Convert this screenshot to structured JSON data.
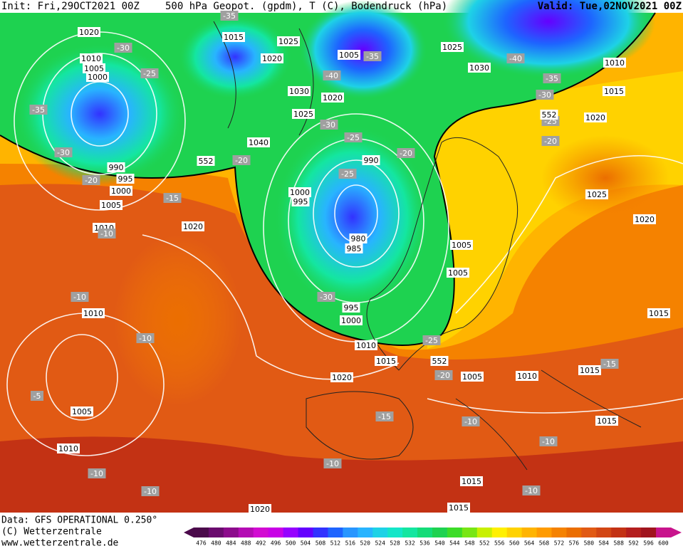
{
  "header": {
    "init": "Init: Fri,29OCT2021 00Z",
    "title": "500 hPa Geopot. (gpdm), T (C), Bodendruck (hPa)",
    "valid": "Valid: Tue,02NOV2021 00Z"
  },
  "footer": {
    "data": "Data: GFS OPERATIONAL 0.250°",
    "copyright": "(C) Wetterzentrale",
    "url": "www.wetterzentrale.de"
  },
  "colorbar": {
    "levels": [
      476,
      480,
      484,
      488,
      492,
      496,
      500,
      504,
      508,
      512,
      516,
      520,
      524,
      528,
      532,
      536,
      540,
      544,
      548,
      552,
      556,
      560,
      564,
      568,
      572,
      576,
      580,
      584,
      588,
      592,
      596,
      600
    ],
    "colors": [
      "#4b0a4b",
      "#6a0a6e",
      "#8c0a8c",
      "#b40ab4",
      "#d20ad2",
      "#c800e6",
      "#9600ff",
      "#6400ff",
      "#3232ff",
      "#1e64ff",
      "#2896ff",
      "#28b4ff",
      "#1ed2e6",
      "#14e6c8",
      "#14e6a0",
      "#14dc78",
      "#1ed250",
      "#3cdc28",
      "#78e614",
      "#c8f000",
      "#fff000",
      "#ffd200",
      "#ffb400",
      "#ff9b00",
      "#f58200",
      "#eb6e00",
      "#e15a14",
      "#d24614",
      "#c33214",
      "#b41e1e",
      "#a0141e",
      "#c8148c"
    ]
  },
  "map": {
    "pressure_labels": [
      1020,
      1015,
      1025,
      1020,
      1005,
      1025,
      1030,
      1010,
      1015,
      1020,
      1010,
      1005,
      1000,
      1030,
      1020,
      1025,
      1040,
      990,
      990,
      995,
      1000,
      1005,
      1010,
      1000,
      995,
      1025,
      1020,
      1020,
      1005,
      980,
      985,
      1005,
      1010,
      995,
      1000,
      1015,
      1010,
      1015,
      1005,
      1010,
      1015,
      1020,
      1005,
      1015,
      1010,
      1015,
      1020,
      1015
    ],
    "temperature_labels": [
      -35,
      -30,
      -25,
      -35,
      -30,
      -20,
      -15,
      -10,
      -35,
      -40,
      -30,
      -25,
      -20,
      -25,
      -20,
      -40,
      -35,
      -30,
      -25,
      -20,
      -10,
      -10,
      -5,
      -30,
      -25,
      -20,
      -15,
      -15,
      -10,
      -10,
      -10,
      -10,
      -10,
      -10
    ],
    "height_labels": [
      552,
      552,
      552
    ]
  }
}
